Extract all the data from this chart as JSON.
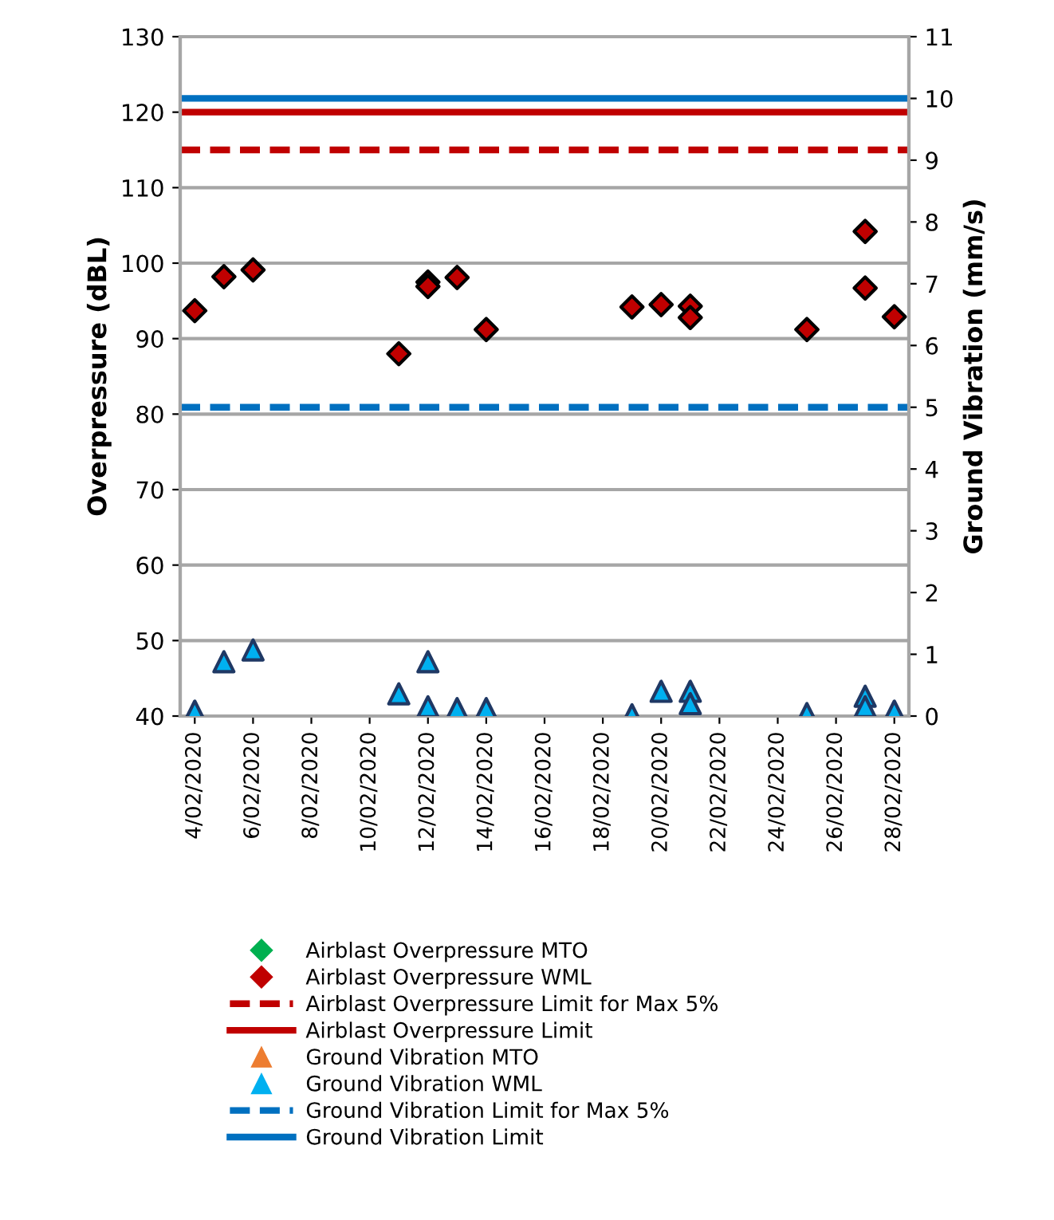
{
  "chart_data": {
    "type": "scatter",
    "ylabel": "Overpressure (dBL)",
    "y2label": "Ground Vibration (mm/s)",
    "xlim": [
      "2020-02-03T12:00",
      "2020-02-28T12:00"
    ],
    "xticks": [
      {
        "value": "2020-02-04",
        "label": "4/02/2020"
      },
      {
        "value": "2020-02-06",
        "label": "6/02/2020"
      },
      {
        "value": "2020-02-08",
        "label": "8/02/2020"
      },
      {
        "value": "2020-02-10",
        "label": "10/02/2020"
      },
      {
        "value": "2020-02-12",
        "label": "12/02/2020"
      },
      {
        "value": "2020-02-14",
        "label": "14/02/2020"
      },
      {
        "value": "2020-02-16",
        "label": "16/02/2020"
      },
      {
        "value": "2020-02-18",
        "label": "18/02/2020"
      },
      {
        "value": "2020-02-20",
        "label": "20/02/2020"
      },
      {
        "value": "2020-02-22",
        "label": "22/02/2020"
      },
      {
        "value": "2020-02-24",
        "label": "24/02/2020"
      },
      {
        "value": "2020-02-26",
        "label": "26/02/2020"
      },
      {
        "value": "2020-02-28",
        "label": "28/02/2020"
      }
    ],
    "ylim": [
      40,
      130
    ],
    "yticks": [
      40,
      50,
      60,
      70,
      80,
      90,
      100,
      110,
      120,
      130
    ],
    "y2lim": [
      0,
      11
    ],
    "y2ticks": [
      0,
      1,
      2,
      3,
      4,
      5,
      6,
      7,
      8,
      9,
      10,
      11
    ],
    "grid": "y",
    "legend": "bottom",
    "series": [
      {
        "name": "Airblast Overpressure MTO",
        "color": "#00b050",
        "marker": "diamond"
      },
      {
        "name": "Airblast Overpressure WML",
        "color": "#c00000",
        "marker": "diamond",
        "x": [
          "2020-02-04",
          "2020-02-05",
          "2020-02-06",
          "2020-02-11",
          "2020-02-12",
          "2020-02-12",
          "2020-02-13",
          "2020-02-14",
          "2020-02-19",
          "2020-02-20",
          "2020-02-21",
          "2020-02-21",
          "2020-02-25",
          "2020-02-27",
          "2020-02-27",
          "2020-02-28"
        ],
        "values": [
          93.7,
          98.2,
          99.1,
          88.0,
          97.5,
          96.9,
          98.1,
          91.2,
          94.2,
          94.5,
          94.3,
          92.8,
          91.2,
          104.2,
          96.7,
          92.9
        ]
      },
      {
        "name": "Ground Vibration MTO",
        "color": "#ed7d31",
        "marker": "triangle",
        "axis": "y2"
      },
      {
        "name": "Ground Vibration WML",
        "color": "#00b0f0",
        "marker": "triangle",
        "axis": "y2",
        "x": [
          "2020-02-04",
          "2020-02-05",
          "2020-02-06",
          "2020-02-11",
          "2020-02-12",
          "2020-02-12",
          "2020-02-13",
          "2020-02-14",
          "2020-02-19",
          "2020-02-20",
          "2020-02-21",
          "2020-02-21",
          "2020-02-25",
          "2020-02-27",
          "2020-02-27",
          "2020-02-28"
        ],
        "values": [
          0.08,
          0.88,
          1.07,
          0.36,
          0.88,
          0.15,
          0.12,
          0.12,
          0.02,
          0.4,
          0.4,
          0.2,
          0.04,
          0.32,
          0.15,
          0.08
        ]
      }
    ],
    "ref_lines": [
      {
        "axis": "y",
        "value": 115,
        "label": "Airblast Overpressure Limit for Max 5%",
        "color": "#c00000",
        "line_style": "dashed"
      },
      {
        "axis": "y",
        "value": 120,
        "label": "Airblast Overpressure Limit",
        "color": "#c00000",
        "line_style": "solid"
      },
      {
        "axis": "y2",
        "value": 5,
        "label": "Ground Vibration Limit for Max 5%",
        "color": "#0070c0",
        "line_style": "dashed"
      },
      {
        "axis": "y2",
        "value": 10,
        "label": "Ground Vibration Limit",
        "color": "#0070c0",
        "line_style": "solid"
      }
    ]
  }
}
